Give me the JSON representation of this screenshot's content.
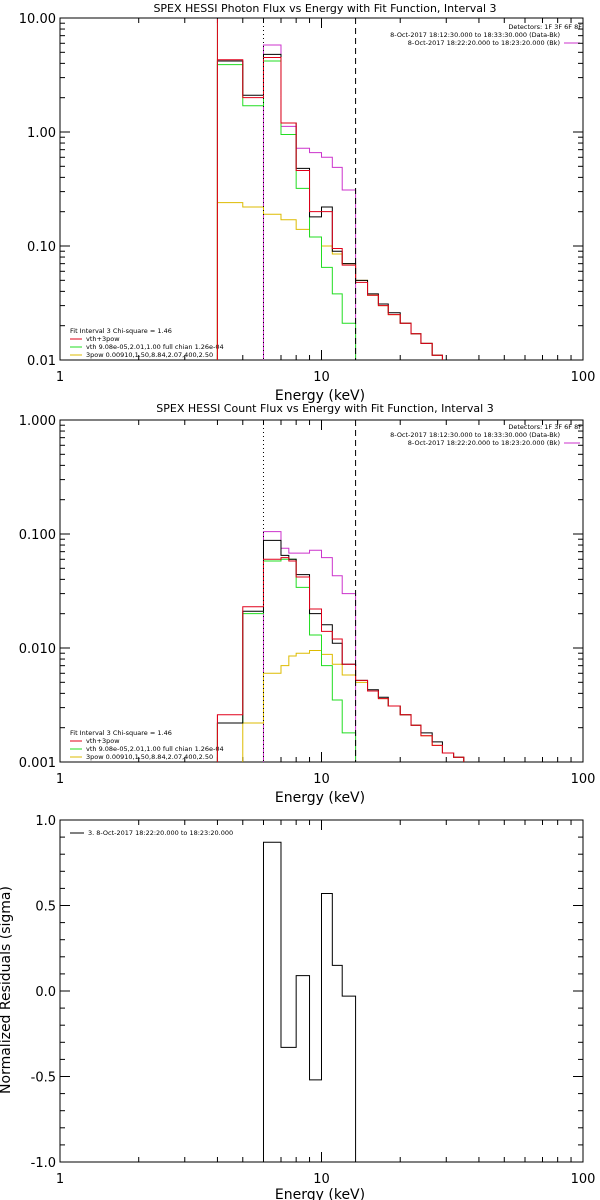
{
  "colors": {
    "data": "#000000",
    "total": "#e0001a",
    "thermal": "#22dd22",
    "nonthermal": "#ddbb00",
    "background": "#cc33cc",
    "fit_range": "#cc33cc"
  },
  "chart_data": [
    {
      "id": "photon",
      "type": "line",
      "title": "SPEX HESSI Photon Flux vs Energy with Fit Function, Interval 3",
      "xlabel": "Energy (keV)",
      "ylabel": "",
      "xscale": "log",
      "yscale": "log",
      "xlim": [
        1,
        100
      ],
      "ylim": [
        0.01,
        10
      ],
      "xticks": [
        1,
        10,
        100
      ],
      "xtick_labels": [
        "1",
        "10",
        "100"
      ],
      "yticks": [
        0.01,
        0.1,
        1,
        10
      ],
      "ytick_labels": [
        "0.01",
        "0.10",
        "1.00",
        "10.00"
      ],
      "info_lines": [
        "Detectors: 1F 3F 6F 8F",
        "8-Oct-2017 18:12:30.000 to 18:33:30.000 (Data-Bk)",
        "8-Oct-2017 18:22:20.000 to 18:23:20.000 (Bk)"
      ],
      "fit_legend": {
        "header": "Fit Interval 3   Chi-square = 1.46",
        "items": [
          "vth+3pow",
          "vth 9.08e-05,2.01,1.00  full chian 1.26e-04",
          "3pow 0.00910,1.50,8.84,2.07,400,2.50"
        ]
      },
      "vlines": [
        {
          "x": 6.0,
          "style": "dotted"
        },
        {
          "x": 13.5,
          "style": "dashed"
        }
      ],
      "edges": [
        4,
        5,
        6,
        7,
        8,
        9,
        10,
        11,
        12,
        13.5,
        15,
        16.5,
        18,
        20,
        22,
        24,
        26.5,
        29
      ],
      "series": [
        {
          "key": "data",
          "values": [
            4.2,
            2.1,
            4.8,
            1.2,
            0.48,
            0.18,
            0.22,
            0.09,
            0.07,
            0.05,
            0.038,
            0.031,
            0.026,
            0.021,
            0.017,
            0.014,
            0.011
          ]
        },
        {
          "key": "total",
          "values": [
            4.3,
            2.0,
            4.5,
            1.2,
            0.46,
            0.2,
            0.2,
            0.095,
            0.068,
            0.048,
            0.037,
            0.03,
            0.025,
            0.021,
            0.017,
            0.014,
            0.011
          ]
        },
        {
          "key": "thermal",
          "values": [
            3.9,
            1.7,
            4.2,
            0.95,
            0.32,
            0.12,
            0.065,
            0.038,
            0.021,
            null,
            null,
            null,
            null,
            null,
            null,
            null,
            null
          ]
        },
        {
          "key": "nonthermal",
          "values": [
            0.24,
            0.22,
            0.19,
            0.17,
            0.14,
            0.12,
            0.1,
            0.085,
            0.07,
            0.05,
            0.037,
            0.03,
            0.025,
            0.021,
            0.017,
            0.014,
            0.011
          ]
        },
        {
          "key": "background",
          "values": [
            null,
            null,
            5.8,
            1.12,
            0.72,
            0.66,
            0.6,
            0.49,
            0.31,
            null,
            null,
            null,
            null,
            null,
            null,
            null,
            null
          ]
        }
      ],
      "edge_series": [
        {
          "key": "thermal",
          "x": 4,
          "from": 0.01,
          "to": 9.2
        },
        {
          "key": "nonthermal",
          "x": 4,
          "from": 0.01,
          "to": 0.5
        },
        {
          "key": "total",
          "x": 4,
          "from": 0.01,
          "to": 9.8
        }
      ]
    },
    {
      "id": "count",
      "type": "line",
      "title": "SPEX HESSI Count Flux vs Energy with Fit Function, Interval 3",
      "xlabel": "Energy (keV)",
      "ylabel": "",
      "xscale": "log",
      "yscale": "log",
      "xlim": [
        1,
        100
      ],
      "ylim": [
        0.001,
        1
      ],
      "xticks": [
        1,
        10,
        100
      ],
      "xtick_labels": [
        "1",
        "10",
        "100"
      ],
      "yticks": [
        0.001,
        0.01,
        0.1,
        1
      ],
      "ytick_labels": [
        "0.001",
        "0.010",
        "0.100",
        "1.000"
      ],
      "info_lines": [
        "Detectors: 1F 3F 6F 8F",
        "8-Oct-2017 18:12:30.000 to 18:33:30.000 (Data-Bk)",
        "8-Oct-2017 18:22:20.000 to 18:23:20.000 (Bk)"
      ],
      "fit_legend": {
        "header": "Fit Interval 3   Chi-square = 1.46",
        "items": [
          "vth+3pow",
          "vth 9.08e-05,2.01,1.00  full chian 1.26e-04",
          "3pow 0.00910,1.50,8.84,2.07,400,2.50"
        ]
      },
      "vlines": [
        {
          "x": 6.0,
          "style": "dotted"
        },
        {
          "x": 13.5,
          "style": "dashed"
        }
      ],
      "edges": [
        4,
        5,
        6,
        7,
        7.5,
        8,
        9,
        10,
        11,
        12,
        13.5,
        15,
        16.5,
        18,
        20,
        22,
        24,
        26.5,
        29,
        32,
        35
      ],
      "series": [
        {
          "key": "data",
          "values": [
            0.0022,
            0.021,
            0.088,
            0.065,
            0.06,
            0.044,
            0.02,
            0.016,
            0.011,
            0.0072,
            0.0052,
            0.0043,
            0.0037,
            0.0031,
            0.0026,
            0.0021,
            0.0018,
            0.0015,
            0.0012,
            0.0011
          ]
        },
        {
          "key": "total",
          "values": [
            0.0026,
            0.023,
            0.06,
            0.062,
            0.058,
            0.042,
            0.022,
            0.014,
            0.012,
            0.0072,
            0.0052,
            0.0042,
            0.0036,
            0.0031,
            0.0026,
            0.0021,
            0.0017,
            0.0014,
            0.0012,
            0.0011
          ]
        },
        {
          "key": "thermal",
          "values": [
            0.0022,
            0.02,
            0.058,
            0.06,
            0.06,
            0.034,
            0.013,
            0.007,
            0.0035,
            0.0018,
            null,
            null,
            null,
            null,
            null,
            null,
            null,
            null,
            null,
            null
          ]
        },
        {
          "key": "nonthermal",
          "values": [
            null,
            0.0022,
            0.006,
            0.007,
            0.0085,
            0.009,
            0.0095,
            0.0088,
            0.0072,
            0.0058,
            0.005,
            0.0042,
            0.0036,
            0.0031,
            0.0026,
            0.0021,
            0.0017,
            0.0014,
            0.0012,
            0.0011
          ]
        },
        {
          "key": "background",
          "values": [
            null,
            null,
            0.105,
            0.075,
            0.068,
            0.068,
            0.072,
            0.062,
            0.043,
            0.03,
            null,
            null,
            null,
            null,
            null,
            null,
            null,
            null,
            null,
            null
          ]
        }
      ],
      "edge_series": [
        {
          "key": "thermal",
          "x": 4,
          "from": 0.001,
          "to": 0.0022
        },
        {
          "key": "total",
          "x": 4,
          "from": 0.001,
          "to": 0.0026
        }
      ]
    },
    {
      "id": "residuals",
      "type": "line",
      "title": "",
      "xlabel": "Energy (keV)",
      "ylabel": "Normalized Residuals (sigma)",
      "xscale": "log",
      "yscale": "linear",
      "xlim": [
        1,
        100
      ],
      "ylim": [
        -1,
        1
      ],
      "xticks": [
        1,
        10,
        100
      ],
      "xtick_labels": [
        "1",
        "10",
        "100"
      ],
      "yticks": [
        -1,
        -0.5,
        0,
        0.5,
        1
      ],
      "ytick_labels": [
        "-1.0",
        "-0.5",
        "0.0",
        "0.5",
        "1.0"
      ],
      "legend_text": "3.  8-Oct-2017 18:22:20.000 to 18:23:20.000",
      "edges": [
        6,
        7,
        8,
        9,
        10,
        11,
        12,
        13.5
      ],
      "series": [
        {
          "key": "data",
          "values": [
            0.87,
            -0.33,
            0.09,
            -0.52,
            0.57,
            0.15,
            -0.03
          ]
        }
      ]
    }
  ]
}
